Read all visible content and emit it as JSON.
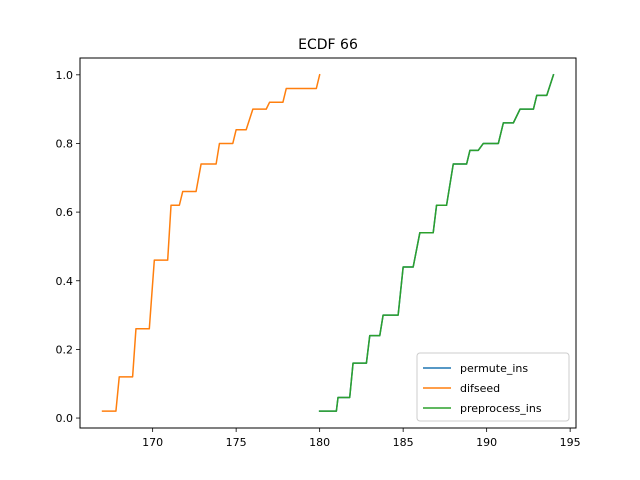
{
  "chart_data": {
    "type": "line",
    "title": "ECDF 66",
    "xlabel": "",
    "ylabel": "",
    "xlim": [
      165.65,
      195.35
    ],
    "ylim": [
      -0.029,
      1.049
    ],
    "x_ticks": [
      170,
      175,
      180,
      185,
      190,
      195
    ],
    "y_ticks": [
      0.0,
      0.2,
      0.4,
      0.6,
      0.8,
      1.0
    ],
    "x_tick_labels": [
      "170",
      "175",
      "180",
      "185",
      "190",
      "195"
    ],
    "y_tick_labels": [
      "0.0",
      "0.2",
      "0.4",
      "0.6",
      "0.8",
      "1.0"
    ],
    "grid": false,
    "legend_position": "lower-right",
    "series": [
      {
        "name": "permute_ins",
        "color": "#1f77b4",
        "points": [
          [
            180,
            0.02
          ],
          [
            181,
            0.02
          ],
          [
            181.1,
            0.06
          ],
          [
            181.8,
            0.06
          ],
          [
            182,
            0.16
          ],
          [
            182.8,
            0.16
          ],
          [
            183,
            0.24
          ],
          [
            183.6,
            0.24
          ],
          [
            183.8,
            0.3
          ],
          [
            184.7,
            0.3
          ],
          [
            185,
            0.44
          ],
          [
            185.6,
            0.44
          ],
          [
            186,
            0.54
          ],
          [
            186.8,
            0.54
          ],
          [
            187,
            0.62
          ],
          [
            187.6,
            0.62
          ],
          [
            188,
            0.74
          ],
          [
            188.8,
            0.74
          ],
          [
            189,
            0.78
          ],
          [
            189.5,
            0.78
          ],
          [
            189.8,
            0.8
          ],
          [
            190.7,
            0.8
          ],
          [
            191,
            0.86
          ],
          [
            191.6,
            0.86
          ],
          [
            192,
            0.9
          ],
          [
            192.8,
            0.9
          ],
          [
            193,
            0.94
          ],
          [
            193.6,
            0.94
          ],
          [
            194,
            1.0
          ]
        ]
      },
      {
        "name": "difseed",
        "color": "#ff7f0e",
        "points": [
          [
            167,
            0.02
          ],
          [
            167.8,
            0.02
          ],
          [
            168,
            0.12
          ],
          [
            168.8,
            0.12
          ],
          [
            169,
            0.26
          ],
          [
            169.8,
            0.26
          ],
          [
            170.1,
            0.46
          ],
          [
            170.9,
            0.46
          ],
          [
            171.1,
            0.62
          ],
          [
            171.6,
            0.62
          ],
          [
            171.8,
            0.66
          ],
          [
            172.6,
            0.66
          ],
          [
            172.9,
            0.74
          ],
          [
            173.8,
            0.74
          ],
          [
            174,
            0.8
          ],
          [
            174.8,
            0.8
          ],
          [
            175,
            0.84
          ],
          [
            175.6,
            0.84
          ],
          [
            176,
            0.9
          ],
          [
            176.8,
            0.9
          ],
          [
            177,
            0.92
          ],
          [
            177.8,
            0.92
          ],
          [
            178,
            0.96
          ],
          [
            179.8,
            0.96
          ],
          [
            180,
            1.0
          ]
        ]
      },
      {
        "name": "preprocess_ins",
        "color": "#2ca02c",
        "points": [
          [
            180,
            0.02
          ],
          [
            181,
            0.02
          ],
          [
            181.1,
            0.06
          ],
          [
            181.8,
            0.06
          ],
          [
            182,
            0.16
          ],
          [
            182.8,
            0.16
          ],
          [
            183,
            0.24
          ],
          [
            183.6,
            0.24
          ],
          [
            183.8,
            0.3
          ],
          [
            184.7,
            0.3
          ],
          [
            185,
            0.44
          ],
          [
            185.6,
            0.44
          ],
          [
            186,
            0.54
          ],
          [
            186.8,
            0.54
          ],
          [
            187,
            0.62
          ],
          [
            187.6,
            0.62
          ],
          [
            188,
            0.74
          ],
          [
            188.8,
            0.74
          ],
          [
            189,
            0.78
          ],
          [
            189.5,
            0.78
          ],
          [
            189.8,
            0.8
          ],
          [
            190.7,
            0.8
          ],
          [
            191,
            0.86
          ],
          [
            191.6,
            0.86
          ],
          [
            192,
            0.9
          ],
          [
            192.8,
            0.9
          ],
          [
            193,
            0.94
          ],
          [
            193.6,
            0.94
          ],
          [
            194,
            1.0
          ]
        ]
      }
    ]
  }
}
